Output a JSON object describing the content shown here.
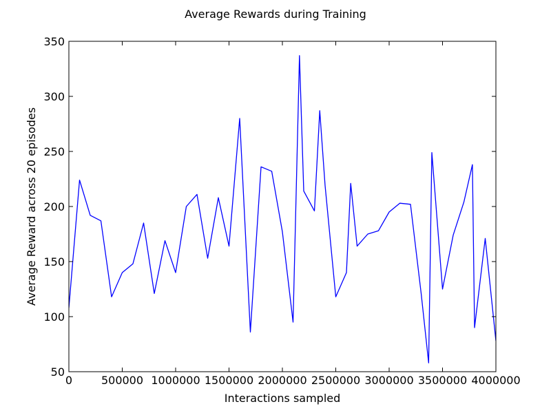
{
  "chart_data": {
    "type": "line",
    "title": "Average Rewards during Training",
    "xlabel": "Interactions sampled",
    "ylabel": "Average Reward across 20 episodes",
    "xlim": [
      0,
      4000000
    ],
    "ylim": [
      50,
      350
    ],
    "xticks": [
      0,
      500000,
      1000000,
      1500000,
      2000000,
      2500000,
      3000000,
      3500000,
      4000000
    ],
    "xtick_labels": [
      "0",
      "500000",
      "1000000",
      "1500000",
      "2000000",
      "2500000",
      "3000000",
      "3500000",
      "4000000"
    ],
    "yticks": [
      50,
      100,
      150,
      200,
      250,
      300,
      350
    ],
    "ytick_labels": [
      "50",
      "100",
      "150",
      "200",
      "250",
      "300",
      "350"
    ],
    "grid": false,
    "legend": "none",
    "series": [
      {
        "color": "#0000ff",
        "x": [
          0,
          100000,
          200000,
          300000,
          400000,
          500000,
          600000,
          700000,
          800000,
          900000,
          1000000,
          1100000,
          1200000,
          1300000,
          1400000,
          1500000,
          1600000,
          1700000,
          1800000,
          1900000,
          2000000,
          2100000,
          2160000,
          2200000,
          2300000,
          2350000,
          2400000,
          2500000,
          2600000,
          2640000,
          2700000,
          2800000,
          2900000,
          3000000,
          3100000,
          3200000,
          3300000,
          3370000,
          3400000,
          3500000,
          3600000,
          3700000,
          3780000,
          3800000,
          3900000,
          4000000
        ],
        "y": [
          108,
          224,
          192,
          187,
          118,
          140,
          148,
          185,
          121,
          169,
          140,
          200,
          211,
          153,
          208,
          164,
          280,
          86,
          236,
          232,
          177,
          95,
          337,
          214,
          196,
          287,
          219,
          118,
          140,
          221,
          164,
          175,
          178,
          195,
          203,
          202,
          121,
          58,
          249,
          125,
          174,
          204,
          238,
          90,
          171,
          78
        ]
      }
    ]
  }
}
